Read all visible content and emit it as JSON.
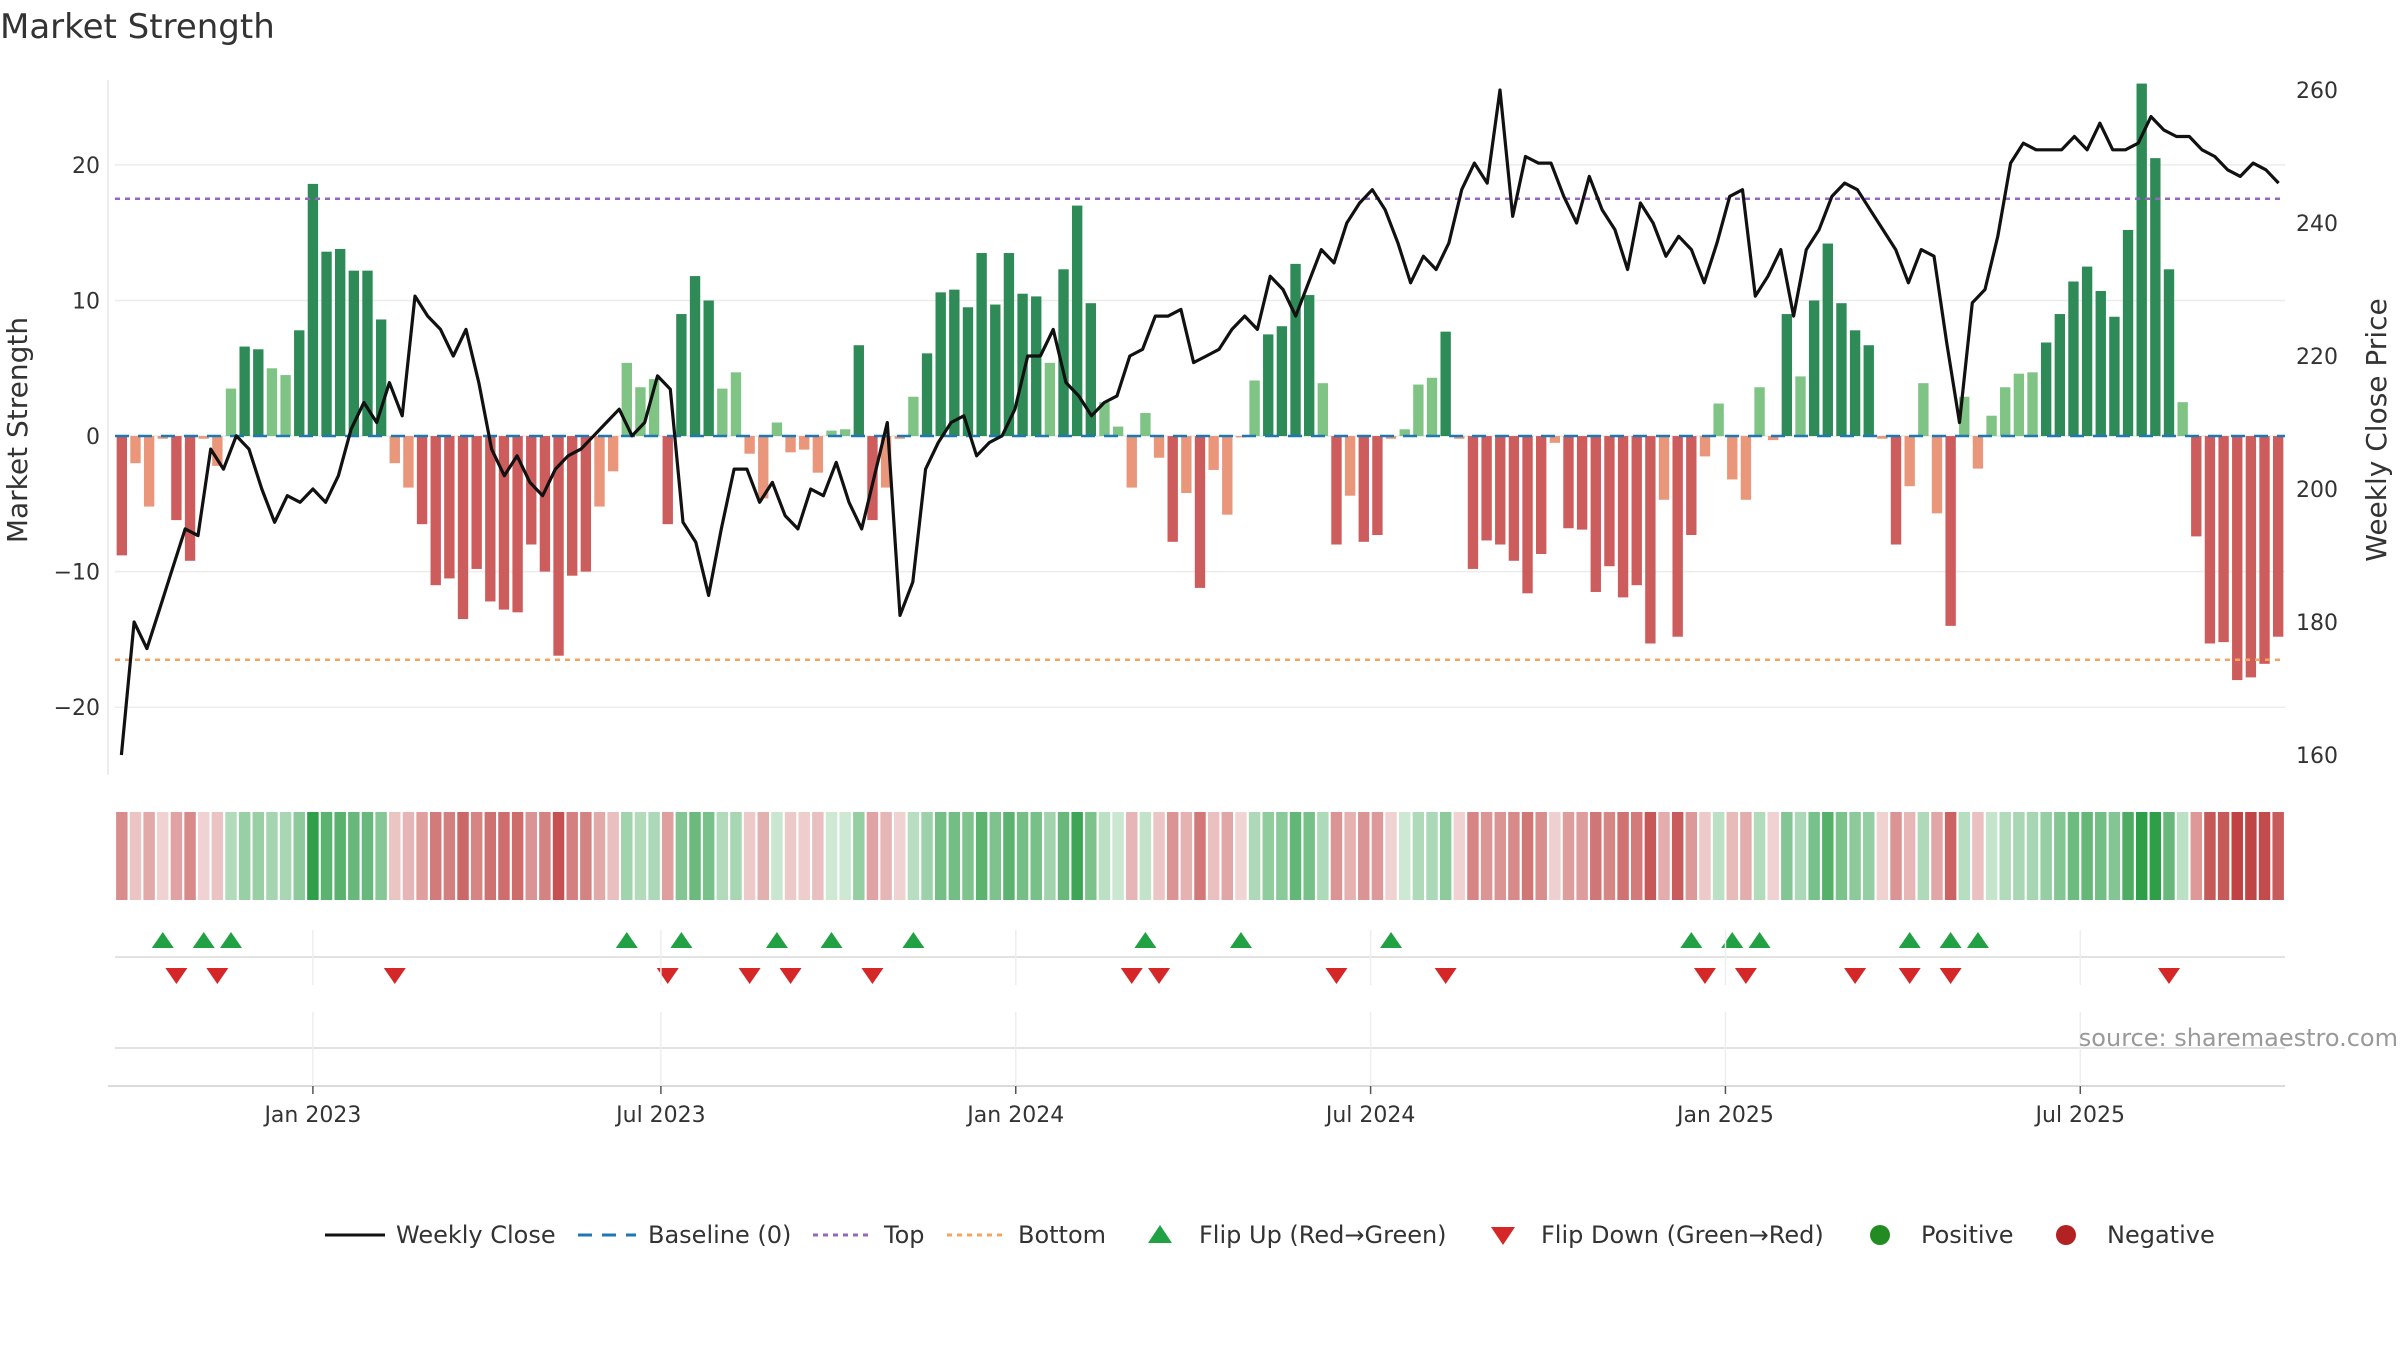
{
  "chart_data": {
    "type": "bar+line",
    "title": "Market Strength",
    "ylabel_left": "Market Strength",
    "ylabel_right": "Weekly Close Price",
    "ylim_left": [
      -25,
      27
    ],
    "ylim_right": [
      157,
      263
    ],
    "yticks_left": [
      -20,
      -10,
      0,
      10,
      20
    ],
    "yticks_right": [
      160,
      180,
      200,
      220,
      240,
      260
    ],
    "x_ticks": [
      {
        "label": "Jan 2023",
        "week": 14.5
      },
      {
        "label": "Jul 2023",
        "week": 40
      },
      {
        "label": "Jan 2024",
        "week": 66
      },
      {
        "label": "Jul 2024",
        "week": 92
      },
      {
        "label": "Jan 2025",
        "week": 118
      },
      {
        "label": "Jul 2025",
        "week": 144
      }
    ],
    "top_level": 17.5,
    "bottom_level": -16.5,
    "strength": [
      -8.8,
      -2,
      -5.2,
      -0.2,
      -6.2,
      -9.2,
      -0.2,
      -2.2,
      3.5,
      6.6,
      6.4,
      5.0,
      4.5,
      7.8,
      18.6,
      13.6,
      13.8,
      12.2,
      12.2,
      8.6,
      -2,
      -3.8,
      -6.5,
      -11,
      -10.5,
      -13.5,
      -9.8,
      -12.2,
      -12.8,
      -13,
      -8,
      -10,
      -16.2,
      -10.3,
      -10,
      -5.2,
      -2.6,
      5.4,
      3.6,
      4.2,
      -6.5,
      9,
      11.8,
      10,
      3.5,
      4.7,
      -1.3,
      -4.6,
      1,
      -1.2,
      -1,
      -2.7,
      0.4,
      0.5,
      6.7,
      -6.2,
      -3.8,
      -0.2,
      2.9,
      6.1,
      10.6,
      10.8,
      9.5,
      13.5,
      9.7,
      13.5,
      10.5,
      10.3,
      5.4,
      12.3,
      17,
      9.8,
      2.5,
      0.7,
      -3.8,
      1.7,
      -1.6,
      -7.8,
      -4.2,
      -11.2,
      -2.5,
      -5.8,
      -0.1,
      4.1,
      7.5,
      8.1,
      12.7,
      10.4,
      3.9,
      -8,
      -4.4,
      -7.8,
      -7.3,
      -0.2,
      0.5,
      3.8,
      4.3,
      7.7,
      -0.2,
      -9.8,
      -7.7,
      -8,
      -9.2,
      -11.6,
      -8.7,
      -0.5,
      -6.8,
      -6.9,
      -11.5,
      -9.6,
      -11.9,
      -11,
      -15.3,
      -4.7,
      -14.8,
      -7.3,
      -1.5,
      2.4,
      -3.2,
      -4.7,
      3.6,
      -0.3,
      9,
      4.4,
      10,
      14.2,
      9.8,
      7.8,
      6.7,
      -0.2,
      -8,
      -3.7,
      3.9,
      -5.7,
      -14,
      2.9,
      -2.4,
      1.5,
      3.6,
      4.6,
      4.7,
      6.9,
      9,
      11.4,
      12.5,
      10.7,
      8.8,
      15.2,
      26,
      20.5,
      12.3,
      2.5,
      -7.4,
      -15.3,
      -15.2,
      -18,
      -17.8,
      -16.8,
      -14.8
    ],
    "weekly_close": [
      160,
      180,
      176,
      182,
      188,
      194,
      193,
      206,
      203,
      208,
      206,
      200,
      195,
      199,
      198,
      200,
      198,
      202,
      209,
      213,
      210,
      216,
      211,
      229,
      226,
      224,
      220,
      224,
      216,
      206,
      202,
      205,
      201,
      199,
      203,
      205,
      206,
      208,
      210,
      212,
      208,
      210,
      217,
      215,
      195,
      192,
      184,
      194,
      203,
      203,
      198,
      201,
      196,
      194,
      200,
      199,
      204,
      198,
      194,
      202,
      210,
      181,
      186,
      203,
      207,
      210,
      211,
      205,
      207,
      208,
      212,
      220,
      220,
      224,
      216,
      214,
      211,
      213,
      214,
      220,
      221,
      226,
      226,
      227,
      219,
      220,
      221,
      224,
      226,
      224,
      232,
      230,
      226,
      231,
      236,
      234,
      240,
      243,
      245,
      242,
      237,
      231,
      235,
      233,
      237,
      245,
      249,
      246,
      260,
      241,
      250,
      249,
      249,
      244,
      240,
      247,
      242,
      239,
      233,
      243,
      240,
      235,
      238,
      236,
      231,
      237,
      244,
      245,
      229,
      232,
      236,
      226,
      236,
      239,
      244,
      246,
      245,
      242,
      239,
      236,
      231,
      236,
      235,
      222,
      210,
      228,
      230,
      238,
      249,
      252,
      251,
      251,
      251,
      253,
      251,
      255,
      251,
      251,
      252,
      256,
      254,
      253,
      253,
      251,
      250,
      248,
      247,
      249,
      248,
      246
    ]
  },
  "flips": {
    "up": [
      3,
      6,
      8,
      37,
      41,
      48,
      52,
      58,
      75,
      82,
      93,
      115,
      118,
      120,
      131,
      134,
      136
    ],
    "down": [
      4,
      7,
      20,
      40,
      46,
      49,
      55,
      74,
      76,
      89,
      97,
      116,
      119,
      127,
      131,
      134,
      150
    ]
  },
  "legend": [
    {
      "key": "close",
      "label": "Weekly Close"
    },
    {
      "key": "baseline",
      "label": "Baseline (0)"
    },
    {
      "key": "top",
      "label": "Top"
    },
    {
      "key": "bottom",
      "label": "Bottom"
    },
    {
      "key": "flip_up",
      "label": "Flip Up (Red→Green)"
    },
    {
      "key": "flip_down",
      "label": "Flip Down (Green→Red)"
    },
    {
      "key": "positive",
      "label": "Positive"
    },
    {
      "key": "negative",
      "label": "Negative"
    }
  ],
  "source": "source: sharemaestro.com",
  "colors": {
    "green_dark": "#2e8b57",
    "green_light": "#7fc484",
    "red_dark": "#cd5c5c",
    "red_light": "#e9967a",
    "baseline": "#1f77b4",
    "top_line": "#9467bd",
    "bottom_line": "#f4a460",
    "flip_up": "#22a044",
    "flip_down": "#d62728",
    "positive": "#228b22",
    "negative": "#b22222",
    "close": "#111111"
  }
}
